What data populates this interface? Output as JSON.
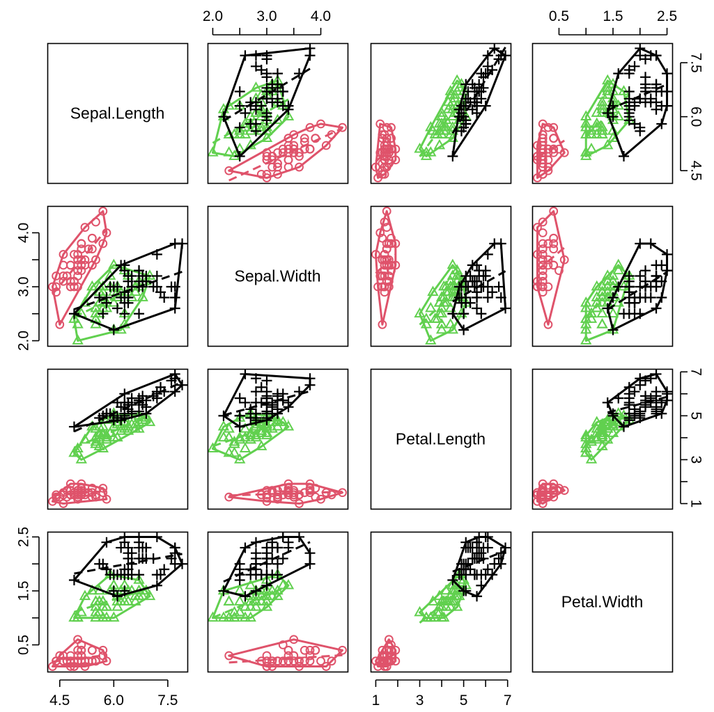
{
  "chart_data": {
    "type": "scatter",
    "variables": [
      "Sepal.Length",
      "Sepal.Width",
      "Petal.Length",
      "Petal.Width"
    ],
    "ranges": {
      "Sepal.Length": [
        4.3,
        7.9
      ],
      "Sepal.Width": [
        2.0,
        4.4
      ],
      "Petal.Length": [
        1.0,
        6.9
      ],
      "Petal.Width": [
        0.1,
        2.5
      ]
    },
    "ticks": {
      "Sepal.Length": [
        "4.5",
        "6.0",
        "7.5"
      ],
      "Sepal.Width": [
        "2.0",
        "3.0",
        "4.0"
      ],
      "Petal.Length": [
        "1",
        "3",
        "5",
        "7"
      ],
      "Petal.Width": [
        "0.5",
        "1.5",
        "2.5"
      ]
    },
    "minor_ticks": {
      "Sepal.Width": [
        2.5,
        3.5
      ],
      "Petal.Width": [
        1.0,
        2.0
      ],
      "Petal.Length": [
        2,
        4,
        6
      ]
    },
    "series": [
      {
        "color": "#DF536B",
        "marker": "circle",
        "points": [
          [
            5.1,
            3.5,
            1.4,
            0.2
          ],
          [
            4.9,
            3.0,
            1.4,
            0.2
          ],
          [
            4.7,
            3.2,
            1.3,
            0.2
          ],
          [
            4.6,
            3.1,
            1.5,
            0.2
          ],
          [
            5.0,
            3.6,
            1.4,
            0.2
          ],
          [
            5.4,
            3.9,
            1.7,
            0.4
          ],
          [
            4.6,
            3.4,
            1.4,
            0.3
          ],
          [
            5.0,
            3.4,
            1.5,
            0.2
          ],
          [
            4.4,
            2.9,
            1.4,
            0.2
          ],
          [
            4.9,
            3.1,
            1.5,
            0.1
          ],
          [
            5.4,
            3.7,
            1.5,
            0.2
          ],
          [
            4.8,
            3.4,
            1.6,
            0.2
          ],
          [
            4.8,
            3.0,
            1.4,
            0.1
          ],
          [
            4.3,
            3.0,
            1.1,
            0.1
          ],
          [
            5.8,
            4.0,
            1.2,
            0.2
          ],
          [
            5.7,
            4.4,
            1.5,
            0.4
          ],
          [
            5.4,
            3.9,
            1.3,
            0.4
          ],
          [
            5.1,
            3.5,
            1.4,
            0.3
          ],
          [
            5.7,
            3.8,
            1.7,
            0.3
          ],
          [
            5.1,
            3.8,
            1.5,
            0.3
          ],
          [
            5.4,
            3.4,
            1.7,
            0.2
          ],
          [
            5.1,
            3.7,
            1.5,
            0.4
          ],
          [
            4.6,
            3.6,
            1.0,
            0.2
          ],
          [
            5.1,
            3.3,
            1.7,
            0.5
          ],
          [
            4.8,
            3.4,
            1.9,
            0.2
          ],
          [
            5.0,
            3.0,
            1.6,
            0.2
          ],
          [
            5.0,
            3.4,
            1.6,
            0.4
          ],
          [
            5.2,
            3.5,
            1.5,
            0.2
          ],
          [
            5.2,
            3.4,
            1.4,
            0.2
          ],
          [
            4.7,
            3.2,
            1.6,
            0.2
          ],
          [
            4.8,
            3.1,
            1.6,
            0.2
          ],
          [
            5.4,
            3.4,
            1.5,
            0.4
          ],
          [
            5.2,
            4.1,
            1.5,
            0.1
          ],
          [
            5.5,
            4.2,
            1.4,
            0.2
          ],
          [
            4.9,
            3.1,
            1.5,
            0.2
          ],
          [
            5.0,
            3.2,
            1.2,
            0.2
          ],
          [
            5.5,
            3.5,
            1.3,
            0.2
          ],
          [
            4.9,
            3.6,
            1.4,
            0.1
          ],
          [
            4.4,
            3.0,
            1.3,
            0.2
          ],
          [
            5.1,
            3.4,
            1.5,
            0.2
          ],
          [
            5.0,
            3.5,
            1.3,
            0.3
          ],
          [
            4.5,
            2.3,
            1.3,
            0.3
          ],
          [
            4.4,
            3.2,
            1.3,
            0.2
          ],
          [
            5.0,
            3.5,
            1.6,
            0.6
          ],
          [
            5.1,
            3.8,
            1.9,
            0.4
          ],
          [
            4.8,
            3.0,
            1.4,
            0.3
          ],
          [
            5.1,
            3.8,
            1.6,
            0.2
          ],
          [
            4.6,
            3.2,
            1.4,
            0.2
          ],
          [
            5.3,
            3.7,
            1.5,
            0.2
          ],
          [
            5.0,
            3.3,
            1.4,
            0.2
          ]
        ]
      },
      {
        "color": "#61D04F",
        "marker": "triangle",
        "points": [
          [
            7.0,
            3.2,
            4.7,
            1.4
          ],
          [
            6.4,
            3.2,
            4.5,
            1.5
          ],
          [
            6.9,
            3.1,
            4.9,
            1.5
          ],
          [
            5.5,
            2.3,
            4.0,
            1.3
          ],
          [
            6.5,
            2.8,
            4.6,
            1.5
          ],
          [
            5.7,
            2.8,
            4.5,
            1.3
          ],
          [
            6.3,
            3.3,
            4.7,
            1.6
          ],
          [
            4.9,
            2.4,
            3.3,
            1.0
          ],
          [
            6.6,
            2.9,
            4.6,
            1.3
          ],
          [
            5.2,
            2.7,
            3.9,
            1.4
          ],
          [
            5.0,
            2.0,
            3.5,
            1.0
          ],
          [
            5.9,
            3.0,
            4.2,
            1.5
          ],
          [
            6.0,
            2.2,
            4.0,
            1.0
          ],
          [
            6.1,
            2.9,
            4.7,
            1.4
          ],
          [
            5.6,
            2.9,
            3.6,
            1.3
          ],
          [
            6.7,
            3.1,
            4.4,
            1.4
          ],
          [
            5.6,
            3.0,
            4.5,
            1.5
          ],
          [
            5.8,
            2.7,
            4.1,
            1.0
          ],
          [
            6.2,
            2.2,
            4.5,
            1.5
          ],
          [
            5.6,
            2.5,
            3.9,
            1.1
          ],
          [
            5.9,
            3.2,
            4.8,
            1.8
          ],
          [
            6.1,
            2.8,
            4.0,
            1.3
          ],
          [
            6.3,
            2.5,
            4.9,
            1.5
          ],
          [
            6.1,
            2.8,
            4.7,
            1.2
          ],
          [
            6.4,
            2.9,
            4.3,
            1.3
          ],
          [
            6.6,
            3.0,
            4.4,
            1.4
          ],
          [
            6.8,
            2.8,
            4.8,
            1.4
          ],
          [
            6.7,
            3.0,
            5.0,
            1.7
          ],
          [
            6.0,
            2.9,
            4.5,
            1.5
          ],
          [
            5.7,
            2.6,
            3.5,
            1.0
          ],
          [
            5.5,
            2.4,
            3.8,
            1.1
          ],
          [
            5.5,
            2.4,
            3.7,
            1.0
          ],
          [
            5.8,
            2.7,
            3.9,
            1.2
          ],
          [
            6.0,
            2.7,
            5.1,
            1.6
          ],
          [
            5.4,
            3.0,
            4.5,
            1.5
          ],
          [
            6.0,
            3.4,
            4.5,
            1.6
          ],
          [
            6.7,
            3.1,
            4.7,
            1.5
          ],
          [
            6.3,
            2.3,
            4.4,
            1.3
          ],
          [
            5.6,
            3.0,
            4.1,
            1.3
          ],
          [
            5.5,
            2.5,
            4.0,
            1.3
          ],
          [
            5.5,
            2.6,
            4.4,
            1.2
          ],
          [
            6.1,
            3.0,
            4.6,
            1.4
          ],
          [
            5.8,
            2.6,
            4.0,
            1.2
          ],
          [
            5.0,
            2.3,
            3.3,
            1.0
          ],
          [
            5.6,
            2.7,
            4.2,
            1.3
          ],
          [
            5.7,
            3.0,
            4.2,
            1.2
          ],
          [
            5.7,
            2.9,
            4.2,
            1.3
          ],
          [
            6.2,
            2.9,
            4.3,
            1.3
          ],
          [
            5.1,
            2.5,
            3.0,
            1.1
          ],
          [
            5.7,
            2.8,
            4.1,
            1.3
          ]
        ]
      },
      {
        "color": "#000000",
        "marker": "plus",
        "points": [
          [
            6.3,
            3.3,
            6.0,
            2.5
          ],
          [
            5.8,
            2.7,
            5.1,
            1.9
          ],
          [
            7.1,
            3.0,
            5.9,
            2.1
          ],
          [
            6.3,
            2.9,
            5.6,
            1.8
          ],
          [
            6.5,
            3.0,
            5.8,
            2.2
          ],
          [
            7.6,
            3.0,
            6.6,
            2.1
          ],
          [
            4.9,
            2.5,
            4.5,
            1.7
          ],
          [
            7.3,
            2.9,
            6.3,
            1.8
          ],
          [
            6.7,
            2.5,
            5.8,
            1.8
          ],
          [
            7.2,
            3.6,
            6.1,
            2.5
          ],
          [
            6.5,
            3.2,
            5.1,
            2.0
          ],
          [
            6.4,
            2.7,
            5.3,
            1.9
          ],
          [
            6.8,
            3.0,
            5.5,
            2.1
          ],
          [
            5.7,
            2.5,
            5.0,
            2.0
          ],
          [
            5.8,
            2.8,
            5.1,
            2.4
          ],
          [
            6.4,
            3.2,
            5.3,
            2.3
          ],
          [
            6.5,
            3.0,
            5.5,
            1.8
          ],
          [
            7.7,
            3.8,
            6.7,
            2.2
          ],
          [
            7.7,
            2.6,
            6.9,
            2.3
          ],
          [
            6.0,
            2.2,
            5.0,
            1.5
          ],
          [
            6.9,
            3.2,
            5.7,
            2.3
          ],
          [
            5.6,
            2.8,
            4.9,
            2.0
          ],
          [
            7.7,
            2.8,
            6.7,
            2.0
          ],
          [
            6.3,
            2.7,
            4.9,
            1.8
          ],
          [
            6.7,
            3.3,
            5.7,
            2.1
          ],
          [
            7.2,
            3.2,
            6.0,
            1.8
          ],
          [
            6.2,
            2.8,
            4.8,
            1.8
          ],
          [
            6.1,
            3.0,
            4.9,
            1.8
          ],
          [
            6.4,
            2.8,
            5.6,
            2.1
          ],
          [
            7.2,
            3.0,
            5.8,
            1.6
          ],
          [
            7.4,
            2.8,
            6.1,
            1.9
          ],
          [
            7.9,
            3.8,
            6.4,
            2.0
          ],
          [
            6.4,
            2.8,
            5.6,
            2.2
          ],
          [
            6.3,
            2.8,
            5.1,
            1.5
          ],
          [
            6.1,
            2.6,
            5.6,
            1.4
          ],
          [
            7.7,
            3.0,
            6.1,
            2.3
          ],
          [
            6.3,
            3.4,
            5.6,
            2.4
          ],
          [
            6.4,
            3.1,
            5.5,
            1.8
          ],
          [
            6.0,
            3.0,
            4.8,
            1.8
          ],
          [
            6.9,
            3.1,
            5.4,
            2.1
          ],
          [
            6.7,
            3.1,
            5.6,
            2.4
          ],
          [
            6.9,
            3.1,
            5.1,
            2.3
          ],
          [
            5.8,
            2.7,
            5.1,
            1.9
          ],
          [
            6.8,
            3.2,
            5.9,
            2.3
          ],
          [
            6.7,
            3.3,
            5.7,
            2.5
          ],
          [
            6.7,
            3.0,
            5.2,
            2.3
          ],
          [
            6.3,
            2.5,
            5.0,
            1.9
          ],
          [
            6.5,
            3.0,
            5.2,
            2.0
          ],
          [
            6.2,
            3.4,
            5.4,
            2.3
          ],
          [
            5.9,
            3.0,
            5.1,
            1.8
          ]
        ]
      }
    ]
  }
}
